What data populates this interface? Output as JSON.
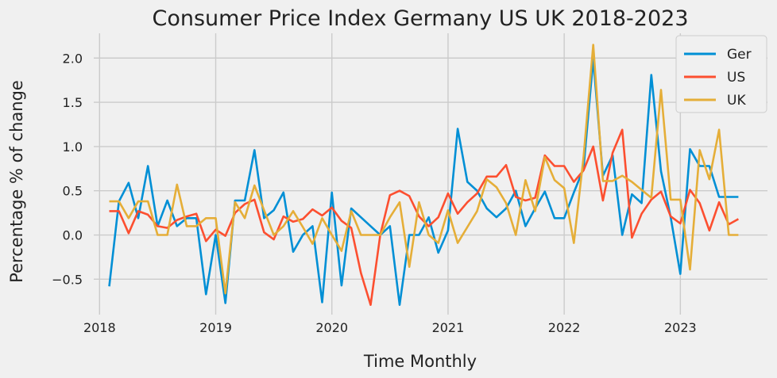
{
  "chart_data": {
    "type": "line",
    "title": "Consumer Price Index Germany US UK 2018-2023",
    "xlabel": "Time Monthly",
    "ylabel": "Percentage % of change",
    "x_ticks": [
      2018,
      2019,
      2020,
      2021,
      2022,
      2023
    ],
    "y_ticks": [
      -0.5,
      0.0,
      0.5,
      1.0,
      1.5,
      2.0
    ],
    "y_tick_labels": [
      "−0.5",
      "0.0",
      "0.5",
      "1.0",
      "1.5",
      "2.0"
    ],
    "xlim": [
      2017.95,
      2023.75
    ],
    "ylim": [
      -0.9,
      2.28
    ],
    "grid": true,
    "legend_position": "top-right",
    "x_start_year": 2018,
    "x_start_month": 2,
    "series": [
      {
        "name": "Ger",
        "color": "#008fd5",
        "values": [
          -0.58,
          0.38,
          0.59,
          0.19,
          0.78,
          0.1,
          0.39,
          0.1,
          0.19,
          0.19,
          -0.67,
          0.0,
          -0.77,
          0.39,
          0.39,
          0.96,
          0.19,
          0.28,
          0.48,
          -0.19,
          0.0,
          0.1,
          -0.76,
          0.48,
          -0.57,
          0.3,
          0.2,
          0.1,
          0.0,
          0.1,
          -0.79,
          0.0,
          0.0,
          0.2,
          -0.2,
          0.05,
          1.2,
          0.6,
          0.5,
          0.3,
          0.2,
          0.3,
          0.5,
          0.1,
          0.3,
          0.49,
          0.19,
          0.19,
          0.48,
          0.75,
          1.99,
          0.67,
          0.9,
          0.0,
          0.46,
          0.36,
          1.81,
          0.72,
          0.2,
          -0.44,
          0.97,
          0.78,
          0.78,
          0.43,
          0.43,
          0.43
        ]
      },
      {
        "name": "US",
        "color": "#fc4f30",
        "values": [
          0.27,
          0.27,
          0.02,
          0.27,
          0.23,
          0.1,
          0.08,
          0.17,
          0.21,
          0.24,
          -0.07,
          0.06,
          -0.01,
          0.25,
          0.35,
          0.4,
          0.03,
          -0.05,
          0.21,
          0.15,
          0.18,
          0.29,
          0.22,
          0.31,
          0.16,
          0.08,
          -0.43,
          -0.79,
          0.0,
          0.45,
          0.5,
          0.44,
          0.21,
          0.1,
          0.2,
          0.47,
          0.24,
          0.37,
          0.47,
          0.66,
          0.66,
          0.79,
          0.43,
          0.39,
          0.42,
          0.9,
          0.78,
          0.78,
          0.6,
          0.73,
          1.0,
          0.39,
          0.93,
          1.19,
          -0.03,
          0.24,
          0.4,
          0.49,
          0.21,
          0.13,
          0.51,
          0.36,
          0.05,
          0.37,
          0.12,
          0.18
        ]
      },
      {
        "name": "UK",
        "color": "#e5ae38",
        "values": [
          0.38,
          0.38,
          0.19,
          0.38,
          0.38,
          0.0,
          0.0,
          0.57,
          0.1,
          0.1,
          0.19,
          0.19,
          -0.66,
          0.37,
          0.19,
          0.56,
          0.28,
          0.0,
          0.1,
          0.27,
          0.09,
          -0.1,
          0.19,
          0.0,
          -0.18,
          0.27,
          0.0,
          0.0,
          0.0,
          0.2,
          0.37,
          -0.36,
          0.37,
          0.0,
          -0.09,
          0.28,
          -0.09,
          0.09,
          0.27,
          0.63,
          0.54,
          0.36,
          0.0,
          0.62,
          0.27,
          0.88,
          0.62,
          0.53,
          -0.09,
          0.88,
          2.15,
          0.61,
          0.61,
          0.67,
          0.6,
          0.51,
          0.42,
          1.64,
          0.4,
          0.4,
          -0.39,
          0.96,
          0.63,
          1.19,
          0.0,
          0.0
        ]
      }
    ]
  }
}
